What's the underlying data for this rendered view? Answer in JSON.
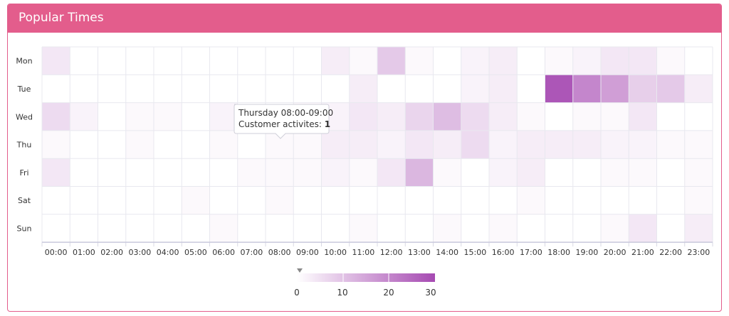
{
  "panel": {
    "title": "Popular Times"
  },
  "colors": {
    "header": "#e35d8c",
    "min": "#ffffff",
    "max": "#a64ab2",
    "grid": "#e8e8ef"
  },
  "tooltip": {
    "line1": "Thursday 08:00-09:00",
    "label": "Customer activites:",
    "value": "1"
  },
  "legend": {
    "ticks": [
      "0",
      "10",
      "20",
      "30"
    ]
  },
  "chart_data": {
    "type": "heatmap",
    "title": "Popular Times",
    "ylabels": [
      "Mon",
      "Tue",
      "Wed",
      "Thu",
      "Fri",
      "Sat",
      "Sun"
    ],
    "xlabels": [
      "00:00",
      "01:00",
      "02:00",
      "03:00",
      "04:00",
      "05:00",
      "06:00",
      "07:00",
      "08:00",
      "09:00",
      "10:00",
      "11:00",
      "12:00",
      "13:00",
      "14:00",
      "15:00",
      "16:00",
      "17:00",
      "18:00",
      "19:00",
      "20:00",
      "21:00",
      "22:00",
      "23:00"
    ],
    "vmin": 0,
    "vmax": 30,
    "values": [
      [
        4,
        0,
        0,
        0,
        0,
        0,
        0,
        0,
        0,
        0,
        3,
        1,
        9,
        1,
        0,
        2,
        3,
        0,
        1,
        2,
        4,
        4,
        1,
        0
      ],
      [
        0,
        0,
        0,
        0,
        0,
        0,
        0,
        0,
        0,
        0,
        0,
        3,
        0,
        0,
        0,
        2,
        3,
        0,
        28,
        20,
        16,
        8,
        9,
        3
      ],
      [
        6,
        2,
        0,
        1,
        1,
        0,
        2,
        0,
        0,
        1,
        2,
        4,
        3,
        7,
        11,
        6,
        3,
        1,
        0,
        1,
        1,
        4,
        0,
        0
      ],
      [
        1,
        0,
        0,
        1,
        0,
        0,
        1,
        0,
        1,
        1,
        3,
        3,
        2,
        4,
        3,
        6,
        2,
        3,
        3,
        3,
        2,
        2,
        1,
        1
      ],
      [
        4,
        0,
        0,
        0,
        0,
        0,
        0,
        1,
        1,
        1,
        2,
        1,
        4,
        12,
        1,
        0,
        2,
        3,
        0,
        0,
        1,
        1,
        0,
        1
      ],
      [
        0,
        0,
        0,
        0,
        0,
        1,
        0,
        0,
        1,
        0,
        0,
        0,
        0,
        0,
        0,
        0,
        0,
        1,
        0,
        0,
        0,
        0,
        0,
        1
      ],
      [
        0,
        0,
        0,
        0,
        0,
        0,
        1,
        0,
        0,
        0,
        0,
        1,
        0,
        0,
        1,
        0,
        1,
        0,
        0,
        0,
        1,
        4,
        0,
        3
      ]
    ]
  }
}
